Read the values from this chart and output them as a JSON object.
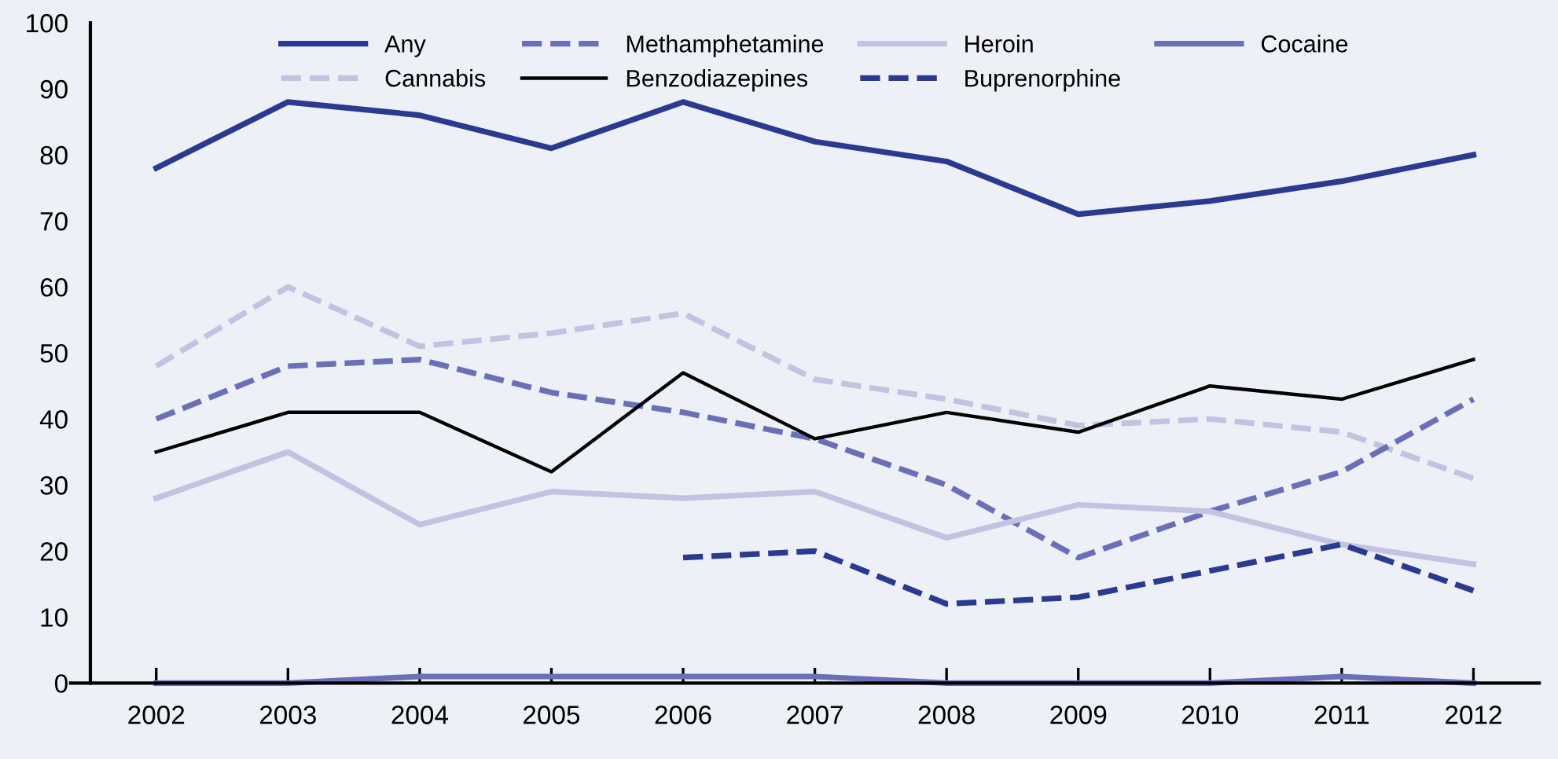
{
  "chart_data": {
    "type": "line",
    "categories": [
      "2002",
      "2003",
      "2004",
      "2005",
      "2006",
      "2007",
      "2008",
      "2009",
      "2010",
      "2011",
      "2012"
    ],
    "ylim": [
      0,
      100
    ],
    "yticks": [
      0,
      10,
      20,
      30,
      40,
      50,
      60,
      70,
      80,
      90,
      100
    ],
    "grid": false,
    "legend": "top",
    "marker": "none",
    "series": [
      {
        "name": "Any",
        "color": "#2b3990",
        "line_style": "solid",
        "values": [
          78,
          88,
          86,
          81,
          88,
          82,
          79,
          71,
          73,
          76,
          80
        ]
      },
      {
        "name": "Cannabis",
        "color": "#c0c4e0",
        "line_style": "dashed",
        "values": [
          48,
          60,
          51,
          53,
          56,
          46,
          43,
          39,
          40,
          38,
          31
        ]
      },
      {
        "name": "Methamphetamine",
        "color": "#6a70b8",
        "line_style": "dashed",
        "values": [
          40,
          48,
          49,
          44,
          41,
          37,
          30,
          19,
          26,
          32,
          43
        ]
      },
      {
        "name": "Benzodiazepines",
        "color": "#000000",
        "line_style": "solid",
        "values": [
          35,
          41,
          41,
          32,
          47,
          37,
          41,
          38,
          45,
          43,
          49
        ]
      },
      {
        "name": "Heroin",
        "color": "#c0c4e0",
        "line_style": "solid",
        "values": [
          28,
          35,
          24,
          29,
          28,
          29,
          22,
          27,
          26,
          21,
          18
        ]
      },
      {
        "name": "Buprenorphine",
        "color": "#2b3990",
        "line_style": "dashed",
        "values": [
          null,
          null,
          null,
          null,
          19,
          20,
          12,
          13,
          17,
          21,
          14
        ]
      },
      {
        "name": "Cocaine",
        "color": "#6a70b8",
        "line_style": "solid",
        "values": [
          0,
          0,
          1,
          1,
          1,
          1,
          0,
          0,
          0,
          1,
          0
        ]
      }
    ]
  }
}
